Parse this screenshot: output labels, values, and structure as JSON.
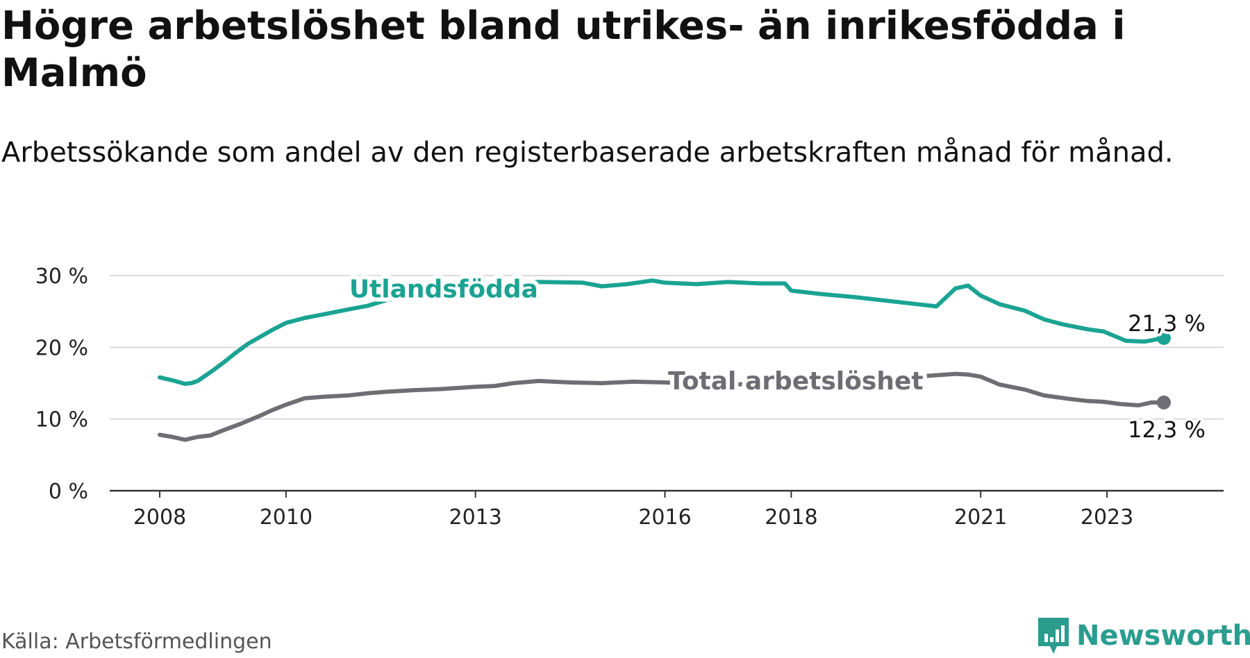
{
  "chart_data": {
    "type": "line",
    "title": "Högre arbetslöshet bland utrikes- än inrikesfödda i Malmö",
    "subtitle": "Arbetssökande som andel av den registerbaserade arbetskraften månad för månad.",
    "xlabel": "",
    "ylabel": "",
    "ylim": [
      0,
      30
    ],
    "y_ticks": [
      "0 %",
      "10 %",
      "20 %",
      "30 %"
    ],
    "y_tick_values": [
      0,
      10,
      20,
      30
    ],
    "x_ticks": [
      "2008",
      "2010",
      "2013",
      "2016",
      "2018",
      "2021",
      "2023"
    ],
    "x_tick_values": [
      2008,
      2010,
      2013,
      2016,
      2018,
      2021,
      2023
    ],
    "xlim": [
      2008,
      2024
    ],
    "grid": "horizontal",
    "series": [
      {
        "name": "Utlandsfödda",
        "color": "#1aa392",
        "end_label": "21,3 %",
        "x": [
          2008,
          2008.2,
          2008.4,
          2008.5,
          2008.6,
          2008.8,
          2009,
          2009.2,
          2009.4,
          2009.6,
          2009.8,
          2010,
          2010.3,
          2010.6,
          2011,
          2011.3,
          2011.6,
          2012,
          2012.5,
          2013,
          2013.5,
          2014,
          2014.7,
          2015,
          2015.4,
          2015.8,
          2016,
          2016.5,
          2017,
          2017.5,
          2017.9,
          2018,
          2018.5,
          2019,
          2019.5,
          2020,
          2020.3,
          2020.6,
          2020.8,
          2021,
          2021.3,
          2021.7,
          2022,
          2022.3,
          2022.7,
          2022.95,
          2023.3,
          2023.6,
          2023.9
        ],
        "values": [
          15.8,
          15.4,
          14.9,
          15.0,
          15.3,
          16.5,
          17.8,
          19.2,
          20.5,
          21.5,
          22.5,
          23.4,
          24.1,
          24.6,
          25.3,
          25.8,
          26.6,
          27.2,
          27.8,
          28.4,
          28.9,
          29.1,
          29.0,
          28.5,
          28.8,
          29.3,
          29.0,
          28.8,
          29.1,
          28.9,
          28.9,
          27.9,
          27.4,
          27.0,
          26.5,
          26.0,
          25.7,
          28.2,
          28.6,
          27.2,
          26.0,
          25.1,
          23.9,
          23.2,
          22.5,
          22.2,
          20.9,
          20.8,
          21.3
        ]
      },
      {
        "name": "Total arbetslöshet",
        "color": "#6e6d74",
        "end_label": "12,3 %",
        "x": [
          2008,
          2008.2,
          2008.4,
          2008.6,
          2008.8,
          2009,
          2009.3,
          2009.6,
          2009.8,
          2010,
          2010.3,
          2010.6,
          2011,
          2011.3,
          2011.6,
          2012,
          2012.5,
          2013,
          2013.3,
          2013.6,
          2014,
          2014.5,
          2015,
          2015.5,
          2016,
          2016.4,
          2016.8,
          2017.3,
          2017.8,
          2018.3,
          2018.8,
          2019.3,
          2019.8,
          2020.3,
          2020.6,
          2020.8,
          2021,
          2021.3,
          2021.7,
          2022,
          2022.4,
          2022.7,
          2022.95,
          2023.2,
          2023.5,
          2023.7,
          2023.9
        ],
        "values": [
          7.8,
          7.5,
          7.1,
          7.5,
          7.7,
          8.4,
          9.4,
          10.5,
          11.3,
          12.0,
          12.9,
          13.1,
          13.3,
          13.6,
          13.8,
          14.0,
          14.2,
          14.5,
          14.6,
          15.0,
          15.3,
          15.1,
          15.0,
          15.2,
          15.1,
          14.9,
          14.6,
          14.9,
          15.3,
          15.5,
          15.6,
          15.6,
          15.8,
          16.1,
          16.3,
          16.2,
          15.9,
          14.8,
          14.1,
          13.3,
          12.8,
          12.5,
          12.4,
          12.1,
          11.9,
          12.3,
          12.3
        ]
      }
    ]
  },
  "source": "Källa: Arbetsförmedlingen",
  "brand": "Newsworthy",
  "brand_color": "#2a9d8f"
}
